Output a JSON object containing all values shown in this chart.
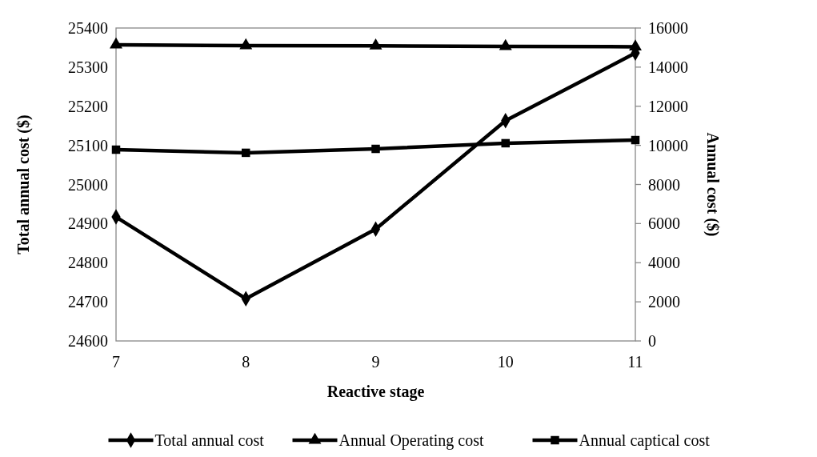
{
  "chart_data": {
    "type": "line",
    "xlabel": "Reactive stage",
    "ylabel": "Total annual cost ($)",
    "y2label": "Annual cost ($)",
    "x": [
      7,
      8,
      9,
      10,
      11
    ],
    "xlim": [
      7,
      11
    ],
    "xticks": [
      7,
      8,
      9,
      10,
      11
    ],
    "ylim": [
      24600,
      25400
    ],
    "yticks": [
      24600,
      24700,
      24800,
      24900,
      25000,
      25100,
      25200,
      25300,
      25400
    ],
    "y2lim": [
      0,
      16000
    ],
    "y2ticks": [
      0,
      2000,
      4000,
      6000,
      8000,
      10000,
      12000,
      14000,
      16000
    ],
    "legend": "bottom",
    "grid": false,
    "line_style": "solid",
    "series": [
      {
        "name": "Total annual cost",
        "color": "#000000",
        "marker": "diamond",
        "values": [
          24917,
          24708,
          24886,
          25163,
          25336
        ]
      },
      {
        "name": "Annual Operating cost",
        "color": "#000000",
        "marker": "triangle",
        "axis": "y2",
        "values": [
          15140,
          15100,
          15090,
          15060,
          15040
        ]
      },
      {
        "name": "Annual captical cost",
        "color": "#000000",
        "marker": "square",
        "axis": "y2",
        "values": [
          9780,
          9620,
          9820,
          10110,
          10270
        ]
      }
    ]
  }
}
